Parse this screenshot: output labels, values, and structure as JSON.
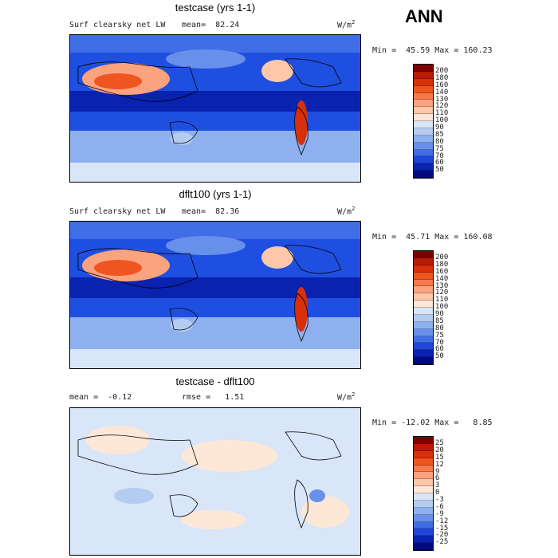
{
  "season": "ANN",
  "panels": [
    {
      "title": "testcase (yrs 1-1)",
      "variable": "Surf clearsky net LW",
      "stat_left": "mean=  82.24",
      "units": "W/m",
      "units_sup": "2",
      "minmax": "Min =  45.59 Max = 160.23",
      "colorbar_labels": [
        "200",
        "180",
        "160",
        "140",
        "130",
        "120",
        "110",
        "100",
        "90",
        "85",
        "80",
        "75",
        "70",
        "60",
        "50"
      ],
      "colorbar_colors": [
        "#7f0000",
        "#b81b06",
        "#d8300a",
        "#ef5520",
        "#f77a4c",
        "#fba27f",
        "#fdc7aa",
        "#fde8d8",
        "#d8e6f7",
        "#b4ccf2",
        "#8eb0ee",
        "#6690ea",
        "#3f6ee6",
        "#2046d8",
        "#0a22b0",
        "#000a80"
      ]
    },
    {
      "title": "dflt100 (yrs 1-1)",
      "variable": "Surf clearsky net LW",
      "stat_left": "mean=  82.36",
      "units": "W/m",
      "units_sup": "2",
      "minmax": "Min =  45.71 Max = 160.08",
      "colorbar_labels": [
        "200",
        "180",
        "160",
        "140",
        "130",
        "120",
        "110",
        "100",
        "90",
        "85",
        "80",
        "75",
        "70",
        "60",
        "50"
      ],
      "colorbar_colors": [
        "#7f0000",
        "#b81b06",
        "#d8300a",
        "#ef5520",
        "#f77a4c",
        "#fba27f",
        "#fdc7aa",
        "#fde8d8",
        "#d8e6f7",
        "#b4ccf2",
        "#8eb0ee",
        "#6690ea",
        "#3f6ee6",
        "#2046d8",
        "#0a22b0",
        "#000a80"
      ]
    },
    {
      "title": "testcase - dflt100",
      "stat_left": "mean =  -0.12",
      "stat_right": "rmse =   1.51",
      "units": "W/m",
      "units_sup": "2",
      "minmax": "Min = -12.02 Max =   8.85",
      "colorbar_labels": [
        "25",
        "20",
        "15",
        "12",
        "9",
        "6",
        "3",
        "0",
        "-3",
        "-6",
        "-9",
        "-12",
        "-15",
        "-20",
        "-25"
      ],
      "colorbar_colors": [
        "#7f0000",
        "#b81b06",
        "#d8300a",
        "#ef5520",
        "#f77a4c",
        "#fba27f",
        "#fdc7aa",
        "#fde8d8",
        "#d8e6f7",
        "#b4ccf2",
        "#8eb0ee",
        "#6690ea",
        "#3f6ee6",
        "#2046d8",
        "#0a22b0",
        "#000a80"
      ]
    }
  ]
}
